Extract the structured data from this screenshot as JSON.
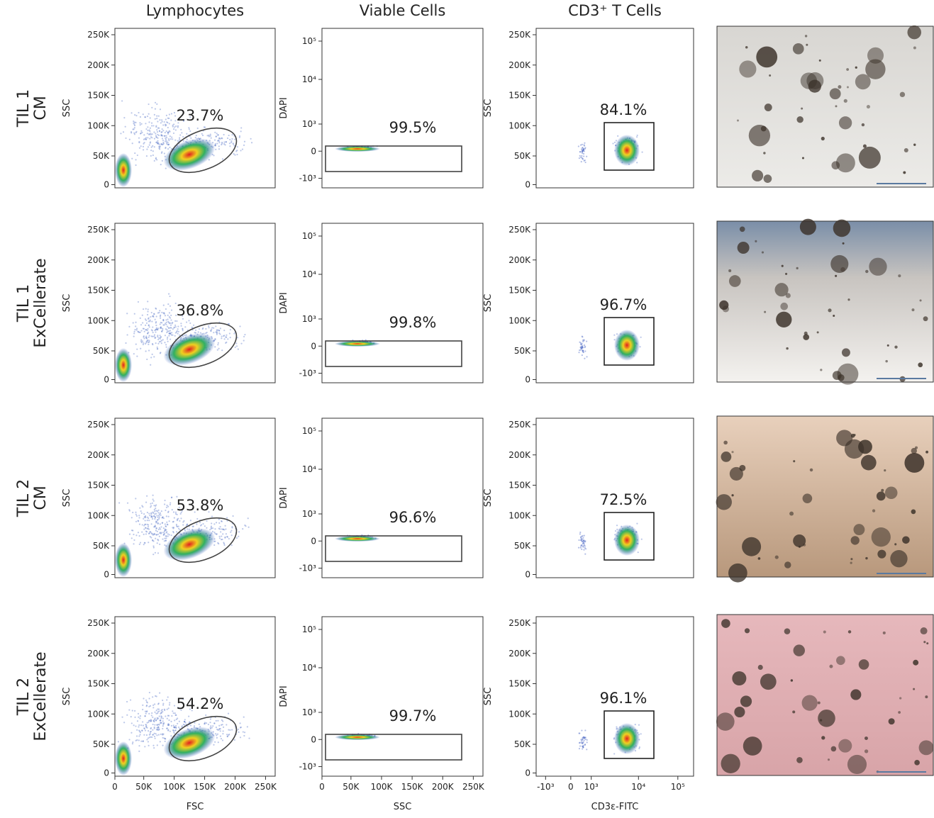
{
  "columns": [
    "Lymphocytes",
    "Viable Cells",
    "CD3⁺ T Cells"
  ],
  "rows": [
    {
      "label": [
        "TIL 1",
        "CM"
      ],
      "gates": [
        "23.7%",
        "99.5%",
        "84.1%"
      ]
    },
    {
      "label": [
        "TIL 1",
        "ExCellerate"
      ],
      "gates": [
        "36.8%",
        "99.8%",
        "96.7%"
      ]
    },
    {
      "label": [
        "TIL 2",
        "CM"
      ],
      "gates": [
        "53.8%",
        "96.6%",
        "72.5%"
      ]
    },
    {
      "label": [
        "TIL 2",
        "ExCellerate"
      ],
      "gates": [
        "54.2%",
        "99.7%",
        "96.1%"
      ]
    }
  ],
  "axes": {
    "y_labels": [
      "SSC",
      "DAPI",
      "SSC"
    ],
    "x_labels": [
      "FSC",
      "SSC",
      "CD3ε-FITC"
    ],
    "ssc_ticks": [
      "250K",
      "200K",
      "150K",
      "100K",
      "50K",
      "0"
    ],
    "dapi_ticks": [
      "10⁵",
      "10⁴",
      "10³",
      "0",
      "-10³"
    ],
    "scatter_x_ticks": [
      "0",
      "50K",
      "100K",
      "150K",
      "200K",
      "250K"
    ],
    "cd3_x_ticks": [
      "-10³",
      "0",
      "10³",
      "10⁴",
      "10⁵"
    ]
  }
}
